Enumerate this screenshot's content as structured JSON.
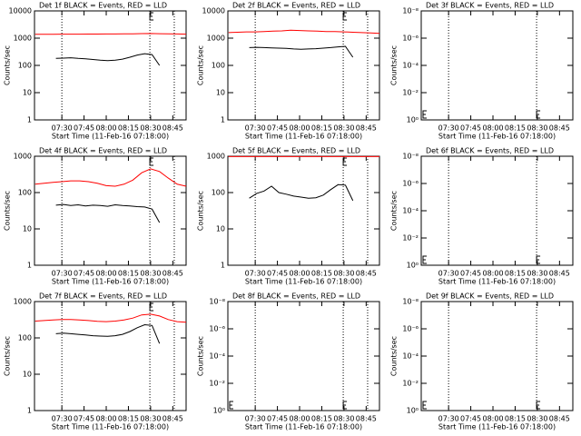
{
  "chart_data": [
    {
      "type": "line",
      "title": "Det 1f BLACK = Events, RED = LLD",
      "x_label": "Start Time (11-Feb-16 07:18:00)",
      "y_label": "Counts/sec",
      "log_y": true,
      "xlim": [
        -6.5,
        96
      ],
      "ylim": [
        1,
        10000
      ],
      "yticks": [
        1,
        10,
        100,
        1000,
        10000
      ],
      "xticks": [
        {
          "value": 12,
          "label": "07:30"
        },
        {
          "value": 27,
          "label": "07:45"
        },
        {
          "value": 42,
          "label": "08:00"
        },
        {
          "value": 57,
          "label": "08:15"
        },
        {
          "value": 72,
          "label": "08:30"
        },
        {
          "value": 87,
          "label": "08:45"
        }
      ],
      "markers": [
        12,
        71.5,
        88
      ],
      "series": [
        {
          "color": "#ff0000",
          "x": [
            -6,
            0,
            6,
            12,
            18,
            24,
            30,
            36,
            42,
            48,
            54,
            60,
            66,
            72,
            78,
            84,
            90,
            96
          ],
          "values": [
            1380,
            1390,
            1390,
            1400,
            1400,
            1400,
            1410,
            1410,
            1420,
            1420,
            1430,
            1450,
            1470,
            1480,
            1460,
            1440,
            1420,
            1400
          ]
        },
        {
          "color": "#000000",
          "x": [
            8,
            13,
            18,
            23,
            28,
            33,
            38,
            43,
            48,
            53,
            58,
            63,
            68,
            73,
            78
          ],
          "values": [
            180,
            185,
            190,
            180,
            175,
            165,
            155,
            150,
            155,
            170,
            200,
            240,
            270,
            250,
            100
          ]
        }
      ]
    },
    {
      "type": "line",
      "title": "Det 2f BLACK = Events, RED = LLD",
      "x_label": "Start Time (11-Feb-16 07:18:00)",
      "y_label": "Counts/sec",
      "log_y": true,
      "xlim": [
        -6.5,
        96
      ],
      "ylim": [
        1,
        10000
      ],
      "yticks": [
        1,
        10,
        100,
        1000,
        10000
      ],
      "xticks": [
        {
          "value": 12,
          "label": "07:30"
        },
        {
          "value": 27,
          "label": "07:45"
        },
        {
          "value": 42,
          "label": "08:00"
        },
        {
          "value": 57,
          "label": "08:15"
        },
        {
          "value": 72,
          "label": "08:30"
        },
        {
          "value": 87,
          "label": "08:45"
        }
      ],
      "markers": [
        12,
        71.5,
        88
      ],
      "series": [
        {
          "color": "#ff0000",
          "x": [
            -6,
            0,
            6,
            12,
            18,
            24,
            30,
            36,
            42,
            48,
            54,
            60,
            66,
            72,
            78,
            84,
            90,
            96
          ],
          "values": [
            1600,
            1650,
            1700,
            1700,
            1750,
            1800,
            1850,
            1950,
            1900,
            1850,
            1800,
            1750,
            1750,
            1700,
            1650,
            1600,
            1550,
            1500
          ]
        },
        {
          "color": "#000000",
          "x": [
            8,
            13,
            18,
            23,
            28,
            33,
            38,
            43,
            48,
            53,
            58,
            63,
            68,
            73,
            78
          ],
          "values": [
            450,
            460,
            450,
            440,
            430,
            420,
            400,
            390,
            400,
            410,
            430,
            450,
            480,
            500,
            200
          ]
        }
      ]
    },
    {
      "type": "line",
      "title": "Det 3f BLACK = Events, RED = LLD",
      "x_label": "Start Time (11-Feb-16 07:18:00)",
      "y_label": "Counts/sec",
      "log_y": true,
      "xlim": [
        -6.5,
        96
      ],
      "ylim": [
        1,
        1e-08
      ],
      "yticks": [
        {
          "value": 1e-08,
          "label": "10⁻⁸"
        },
        {
          "value": 1e-06,
          "label": "10⁻⁶"
        },
        {
          "value": 0.0001,
          "label": "10⁻⁴"
        },
        {
          "value": 0.01,
          "label": "10⁻²"
        },
        {
          "value": 1,
          "label": "10⁰"
        }
      ],
      "xticks": [
        {
          "value": 12,
          "label": "07:30"
        },
        {
          "value": 27,
          "label": "07:45"
        },
        {
          "value": 42,
          "label": "08:00"
        },
        {
          "value": 57,
          "label": "08:15"
        },
        {
          "value": 72,
          "label": "08:30"
        },
        {
          "value": 87,
          "label": "08:45"
        }
      ],
      "markers": [
        12,
        71.5
      ],
      "series": []
    },
    {
      "type": "line",
      "title": "Det 4f BLACK = Events, RED = LLD",
      "x_label": "Start Time (11-Feb-16 07:18:00)",
      "y_label": "Counts/sec",
      "log_y": true,
      "xlim": [
        -6.5,
        96
      ],
      "ylim": [
        1,
        1000
      ],
      "yticks": [
        1,
        10,
        100,
        1000
      ],
      "xticks": [
        {
          "value": 12,
          "label": "07:30"
        },
        {
          "value": 27,
          "label": "07:45"
        },
        {
          "value": 42,
          "label": "08:00"
        },
        {
          "value": 57,
          "label": "08:15"
        },
        {
          "value": 72,
          "label": "08:30"
        },
        {
          "value": 87,
          "label": "08:45"
        }
      ],
      "markers": [
        12,
        71.5,
        88
      ],
      "series": [
        {
          "color": "#ff0000",
          "x": [
            -6,
            0,
            6,
            12,
            18,
            24,
            30,
            36,
            42,
            48,
            54,
            60,
            66,
            72,
            78,
            84,
            90,
            96
          ],
          "values": [
            170,
            180,
            190,
            200,
            210,
            210,
            200,
            180,
            155,
            150,
            170,
            220,
            350,
            450,
            380,
            250,
            170,
            150
          ]
        },
        {
          "color": "#000000",
          "x": [
            8,
            13,
            18,
            23,
            28,
            33,
            38,
            43,
            48,
            53,
            58,
            63,
            68,
            73,
            78
          ],
          "values": [
            45,
            47,
            44,
            46,
            43,
            45,
            44,
            42,
            46,
            44,
            43,
            41,
            40,
            35,
            15
          ]
        }
      ]
    },
    {
      "type": "line",
      "title": "Det 5f BLACK = Events, RED = LLD",
      "x_label": "Start Time (11-Feb-16 07:18:00)",
      "y_label": "Counts/sec",
      "log_y": true,
      "xlim": [
        -6.5,
        96
      ],
      "ylim": [
        1,
        1000
      ],
      "yticks": [
        1,
        10,
        100,
        1000
      ],
      "xticks": [
        {
          "value": 12,
          "label": "07:30"
        },
        {
          "value": 27,
          "label": "07:45"
        },
        {
          "value": 42,
          "label": "08:00"
        },
        {
          "value": 57,
          "label": "08:15"
        },
        {
          "value": 72,
          "label": "08:30"
        },
        {
          "value": 87,
          "label": "08:45"
        }
      ],
      "markers": [
        12,
        71.5,
        88
      ],
      "series": [
        {
          "color": "#ff0000",
          "x": [
            -6,
            0,
            6,
            12,
            18,
            24,
            30,
            36,
            42,
            48,
            54,
            60,
            66,
            72,
            78,
            84,
            90,
            96
          ],
          "values": [
            980,
            980,
            980,
            980,
            980,
            980,
            980,
            980,
            980,
            980,
            980,
            980,
            980,
            980,
            980,
            980,
            980,
            980
          ]
        },
        {
          "color": "#000000",
          "x": [
            8,
            13,
            18,
            23,
            28,
            33,
            38,
            43,
            48,
            53,
            58,
            63,
            68,
            73,
            78
          ],
          "values": [
            70,
            95,
            110,
            150,
            100,
            90,
            80,
            75,
            70,
            72,
            85,
            120,
            165,
            160,
            60
          ]
        }
      ]
    },
    {
      "type": "line",
      "title": "Det 6f BLACK = Events, RED = LLD",
      "x_label": "Start Time (11-Feb-16 07:18:00)",
      "y_label": "Counts/sec",
      "log_y": true,
      "xlim": [
        -6.5,
        96
      ],
      "ylim": [
        1,
        1e-08
      ],
      "yticks": [
        {
          "value": 1e-08,
          "label": "10⁻⁸"
        },
        {
          "value": 1e-06,
          "label": "10⁻⁶"
        },
        {
          "value": 0.0001,
          "label": "10⁻⁴"
        },
        {
          "value": 0.01,
          "label": "10⁻²"
        },
        {
          "value": 1,
          "label": "10⁰"
        }
      ],
      "xticks": [
        {
          "value": 12,
          "label": "07:30"
        },
        {
          "value": 27,
          "label": "07:45"
        },
        {
          "value": 42,
          "label": "08:00"
        },
        {
          "value": 57,
          "label": "08:15"
        },
        {
          "value": 72,
          "label": "08:30"
        },
        {
          "value": 87,
          "label": "08:45"
        }
      ],
      "markers": [
        12,
        71.5
      ],
      "series": []
    },
    {
      "type": "line",
      "title": "Det 7f BLACK = Events, RED = LLD",
      "x_label": "Start Time (11-Feb-16 07:18:00)",
      "y_label": "Counts/sec",
      "log_y": true,
      "xlim": [
        -6.5,
        96
      ],
      "ylim": [
        1,
        1000
      ],
      "yticks": [
        1,
        10,
        100,
        1000
      ],
      "xticks": [
        {
          "value": 12,
          "label": "07:30"
        },
        {
          "value": 27,
          "label": "07:45"
        },
        {
          "value": 42,
          "label": "08:00"
        },
        {
          "value": 57,
          "label": "08:15"
        },
        {
          "value": 72,
          "label": "08:30"
        },
        {
          "value": 87,
          "label": "08:45"
        }
      ],
      "markers": [
        12,
        71.5,
        88
      ],
      "series": [
        {
          "color": "#ff0000",
          "x": [
            -6,
            0,
            6,
            12,
            18,
            24,
            30,
            36,
            42,
            48,
            54,
            60,
            66,
            72,
            78,
            84,
            90,
            96
          ],
          "values": [
            290,
            300,
            310,
            320,
            320,
            310,
            300,
            285,
            280,
            290,
            310,
            350,
            430,
            450,
            400,
            320,
            280,
            270
          ]
        },
        {
          "color": "#000000",
          "x": [
            8,
            13,
            18,
            23,
            28,
            33,
            38,
            43,
            48,
            53,
            58,
            63,
            68,
            73,
            78
          ],
          "values": [
            130,
            135,
            130,
            125,
            120,
            115,
            112,
            110,
            115,
            125,
            150,
            190,
            230,
            220,
            70
          ]
        }
      ]
    },
    {
      "type": "line",
      "title": "Det 8f BLACK = Events, RED = LLD",
      "x_label": "Start Time (11-Feb-16 07:18:00)",
      "y_label": "Counts/sec",
      "log_y": true,
      "xlim": [
        -6.5,
        96
      ],
      "ylim": [
        1,
        1e-08
      ],
      "yticks": [
        {
          "value": 1e-08,
          "label": "10⁻⁸"
        },
        {
          "value": 1e-06,
          "label": "10⁻⁶"
        },
        {
          "value": 0.0001,
          "label": "10⁻⁴"
        },
        {
          "value": 0.01,
          "label": "10⁻²"
        },
        {
          "value": 1,
          "label": "10⁰"
        }
      ],
      "xticks": [
        {
          "value": 12,
          "label": "07:30"
        },
        {
          "value": 27,
          "label": "07:45"
        },
        {
          "value": 42,
          "label": "08:00"
        },
        {
          "value": 57,
          "label": "08:15"
        },
        {
          "value": 72,
          "label": "08:30"
        },
        {
          "value": 87,
          "label": "08:45"
        }
      ],
      "markers": [
        12,
        71.5,
        88
      ],
      "series": []
    },
    {
      "type": "line",
      "title": "Det 9f BLACK = Events, RED = LLD",
      "x_label": "Start Time (11-Feb-16 07:18:00)",
      "y_label": "Counts/sec",
      "log_y": true,
      "xlim": [
        -6.5,
        96
      ],
      "ylim": [
        1,
        1e-08
      ],
      "yticks": [
        {
          "value": 1e-08,
          "label": "10⁻⁸"
        },
        {
          "value": 1e-06,
          "label": "10⁻⁶"
        },
        {
          "value": 0.0001,
          "label": "10⁻⁴"
        },
        {
          "value": 0.01,
          "label": "10⁻²"
        },
        {
          "value": 1,
          "label": "10⁰"
        }
      ],
      "xticks": [
        {
          "value": 12,
          "label": "07:30"
        },
        {
          "value": 27,
          "label": "07:45"
        },
        {
          "value": 42,
          "label": "08:00"
        },
        {
          "value": 57,
          "label": "08:15"
        },
        {
          "value": 72,
          "label": "08:30"
        },
        {
          "value": 87,
          "label": "08:45"
        }
      ],
      "markers": [
        12,
        71.5
      ],
      "series": []
    }
  ]
}
